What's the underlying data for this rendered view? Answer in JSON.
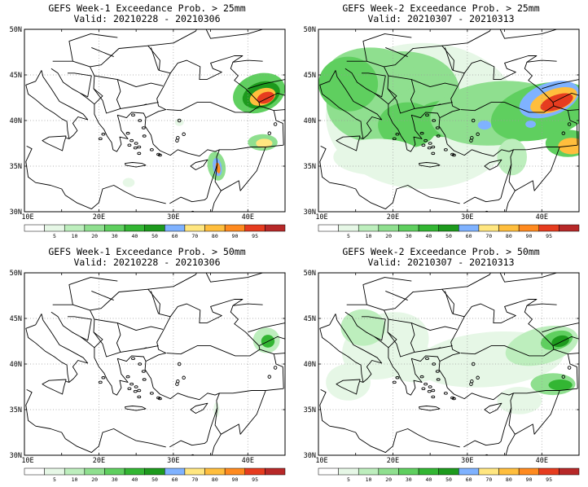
{
  "colors": {
    "bins": [
      "#ffffff",
      "#e6f7e6",
      "#bdeebd",
      "#8fdf8f",
      "#5fcf5f",
      "#33b633",
      "#1d9a1d",
      "#7fb2ff",
      "#ffe680",
      "#ffbe3d",
      "#ff8a1f",
      "#e63c1f",
      "#b72828"
    ],
    "land_outline": "#000000",
    "grid": "#9a9a9a"
  },
  "colorbar_labels": [
    "5",
    "10",
    "20",
    "30",
    "40",
    "50",
    "60",
    "70",
    "80",
    "90",
    "95"
  ],
  "axes": {
    "lon_labels": [
      "10E",
      "20E",
      "30E",
      "40E"
    ],
    "lat_labels": [
      "50N",
      "45N",
      "40N",
      "35N",
      "30N"
    ]
  },
  "panels": [
    {
      "title_line1": "GEFS Week-1 Exceedance Prob. > 25mm",
      "title_line2": "Valid: 20210228 - 20210306"
    },
    {
      "title_line1": "GEFS Week-2 Exceedance Prob. > 25mm",
      "title_line2": "Valid: 20210307 - 20210313"
    },
    {
      "title_line1": "GEFS Week-1 Exceedance Prob. > 50mm",
      "title_line2": "Valid: 20210228 - 20210306"
    },
    {
      "title_line1": "GEFS Week-2 Exceedance Prob. > 50mm",
      "title_line2": "Valid: 20210307 - 20210313"
    }
  ]
}
